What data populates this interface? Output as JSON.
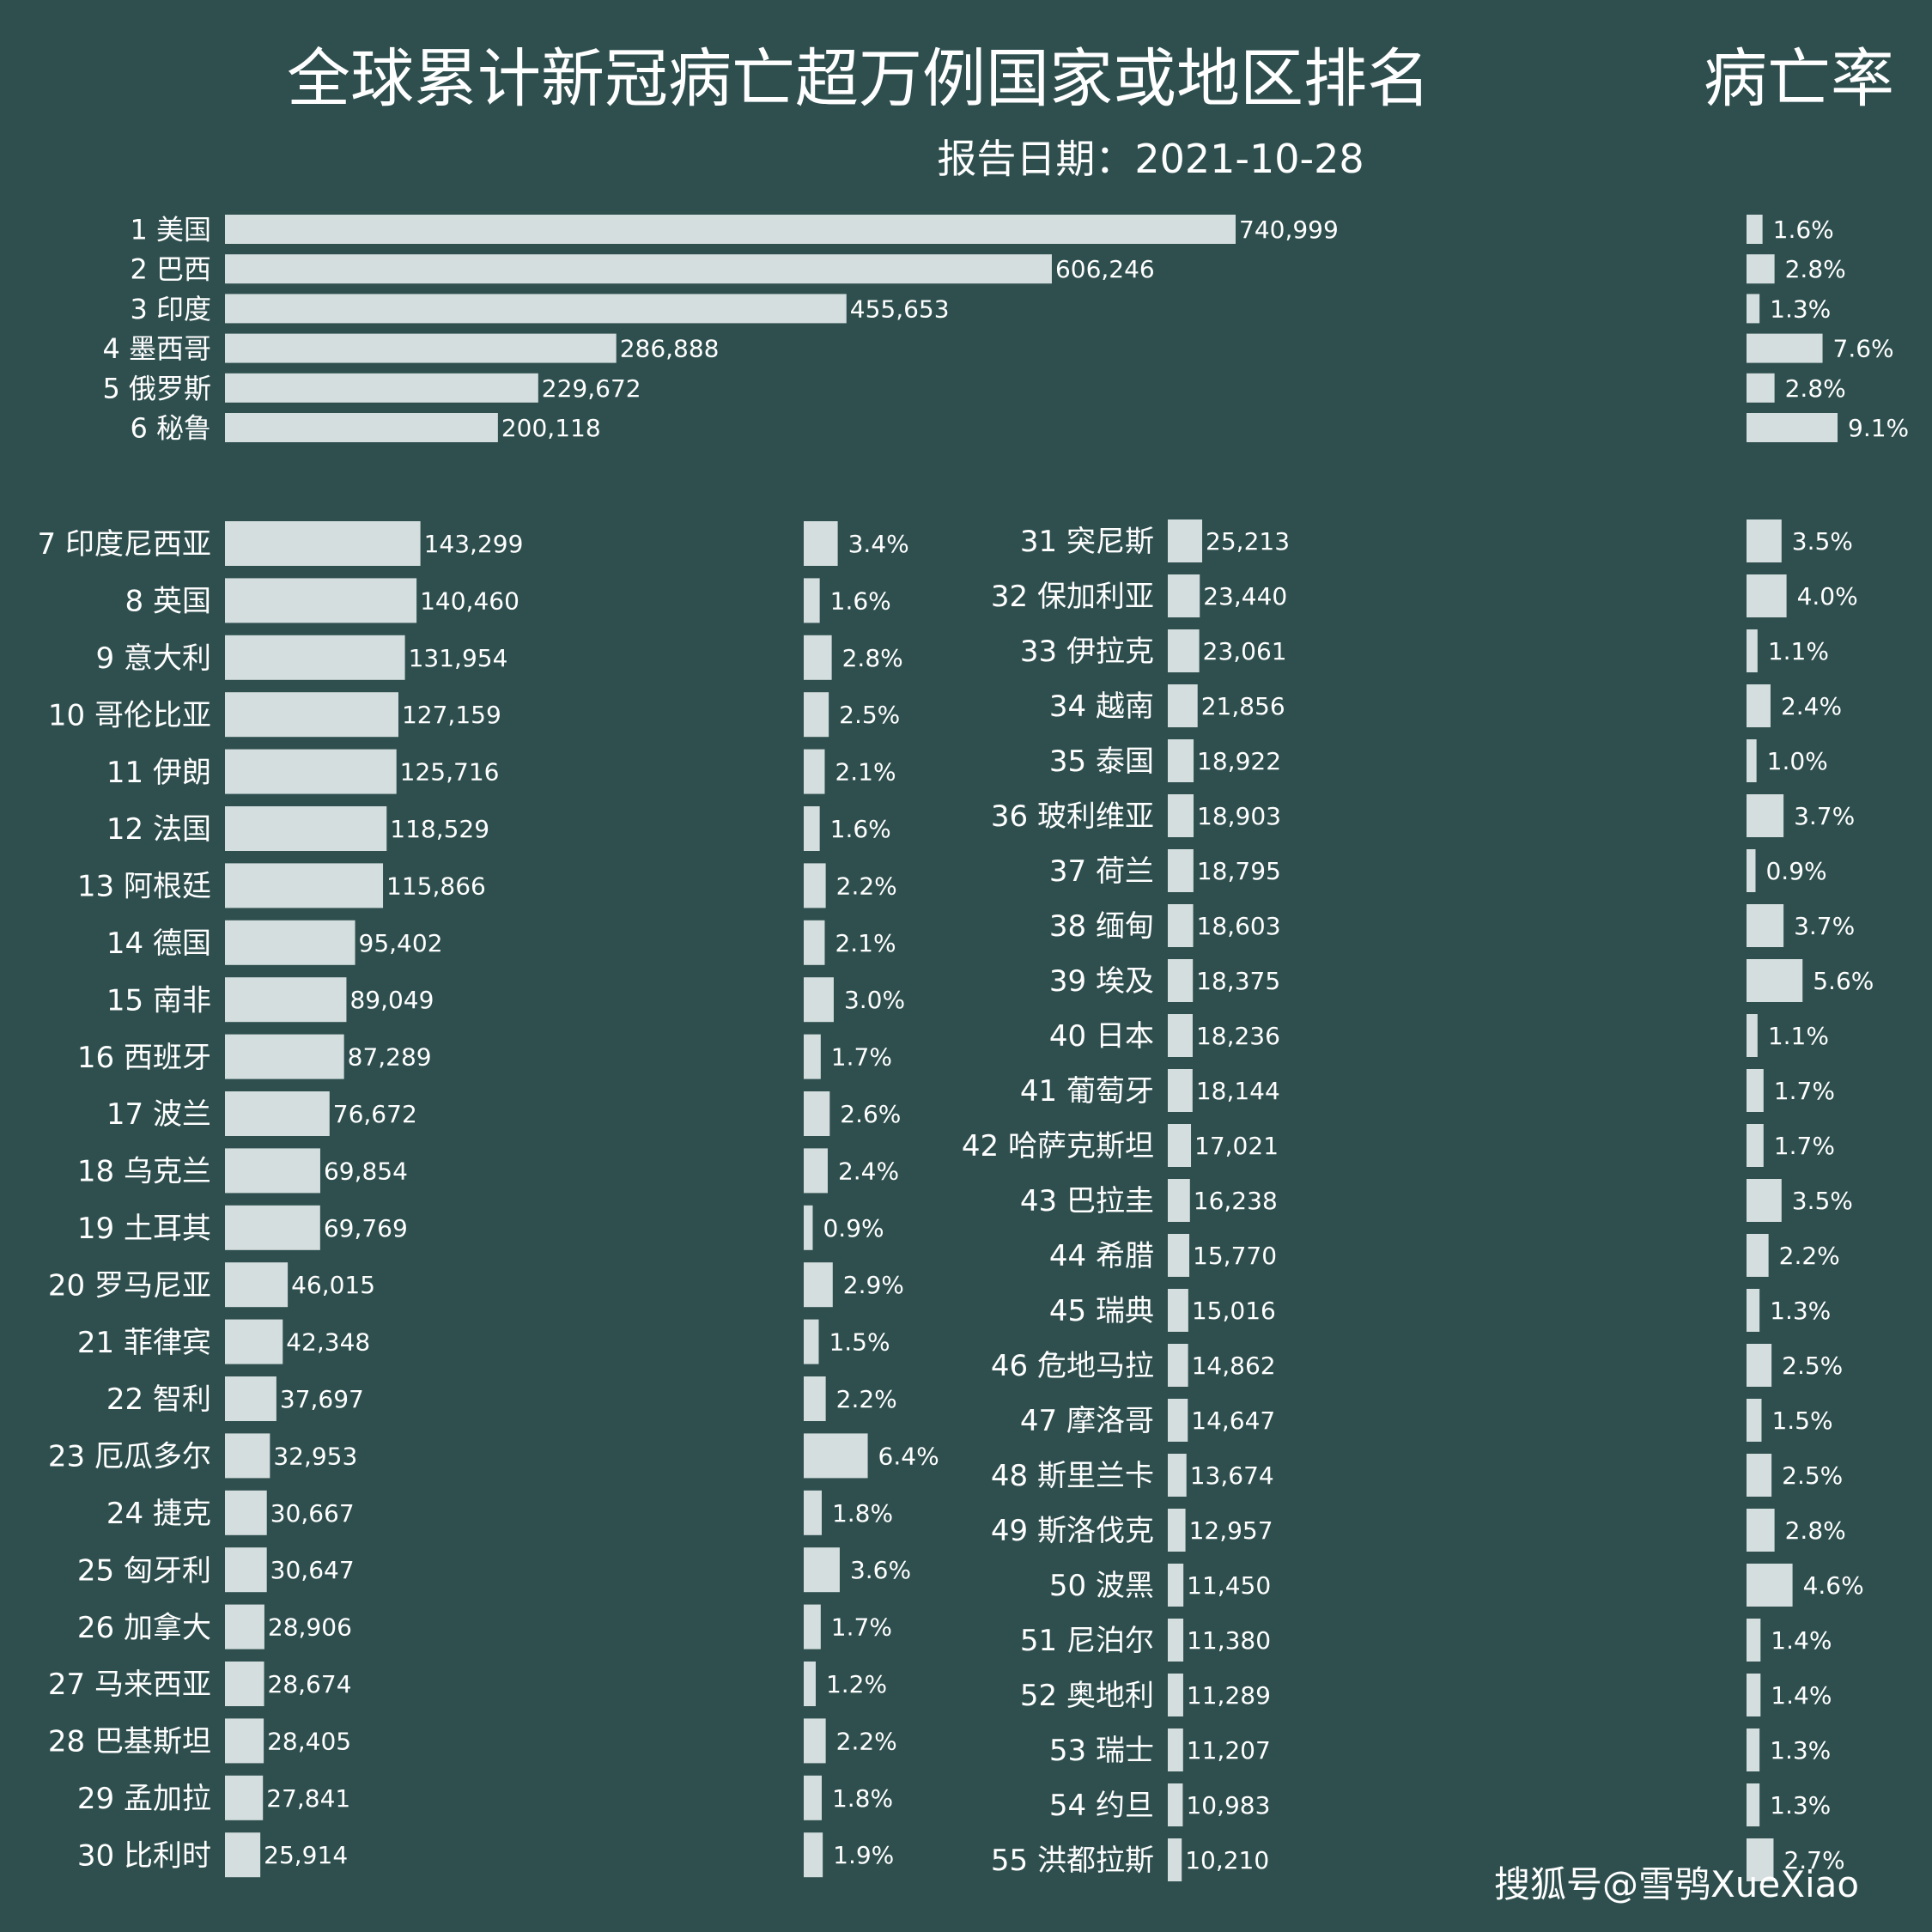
{
  "colors": {
    "background": "#2f4f4f",
    "bar": "#d5dede",
    "text": "#ffffff"
  },
  "chart_data": {
    "type": "bar",
    "orientation": "horizontal",
    "title": "全球累计新冠病亡超万例国家或地区排名",
    "rate_title": "病亡率",
    "subtitle": "报告日期：2021-10-28",
    "rows": [
      {
        "rank": "1",
        "name": "美国",
        "deaths": 740999,
        "deaths_label": "740,999",
        "rate": 1.6,
        "rate_label": "1.6%"
      },
      {
        "rank": "2",
        "name": "巴西",
        "deaths": 606246,
        "deaths_label": "606,246",
        "rate": 2.8,
        "rate_label": "2.8%"
      },
      {
        "rank": "3",
        "name": "印度",
        "deaths": 455653,
        "deaths_label": "455,653",
        "rate": 1.3,
        "rate_label": "1.3%"
      },
      {
        "rank": "4",
        "name": "墨西哥",
        "deaths": 286888,
        "deaths_label": "286,888",
        "rate": 7.6,
        "rate_label": "7.6%"
      },
      {
        "rank": "5",
        "name": "俄罗斯",
        "deaths": 229672,
        "deaths_label": "229,672",
        "rate": 2.8,
        "rate_label": "2.8%"
      },
      {
        "rank": "6",
        "name": "秘鲁",
        "deaths": 200118,
        "deaths_label": "200,118",
        "rate": 9.1,
        "rate_label": "9.1%"
      },
      {
        "rank": "7",
        "name": "印度尼西亚",
        "deaths": 143299,
        "deaths_label": "143,299",
        "rate": 3.4,
        "rate_label": "3.4%"
      },
      {
        "rank": "8",
        "name": "英国",
        "deaths": 140460,
        "deaths_label": "140,460",
        "rate": 1.6,
        "rate_label": "1.6%"
      },
      {
        "rank": "9",
        "name": "意大利",
        "deaths": 131954,
        "deaths_label": "131,954",
        "rate": 2.8,
        "rate_label": "2.8%"
      },
      {
        "rank": "10",
        "name": "哥伦比亚",
        "deaths": 127159,
        "deaths_label": "127,159",
        "rate": 2.5,
        "rate_label": "2.5%"
      },
      {
        "rank": "11",
        "name": "伊朗",
        "deaths": 125716,
        "deaths_label": "125,716",
        "rate": 2.1,
        "rate_label": "2.1%"
      },
      {
        "rank": "12",
        "name": "法国",
        "deaths": 118529,
        "deaths_label": "118,529",
        "rate": 1.6,
        "rate_label": "1.6%"
      },
      {
        "rank": "13",
        "name": "阿根廷",
        "deaths": 115866,
        "deaths_label": "115,866",
        "rate": 2.2,
        "rate_label": "2.2%"
      },
      {
        "rank": "14",
        "name": "德国",
        "deaths": 95402,
        "deaths_label": "95,402",
        "rate": 2.1,
        "rate_label": "2.1%"
      },
      {
        "rank": "15",
        "name": "南非",
        "deaths": 89049,
        "deaths_label": "89,049",
        "rate": 3.0,
        "rate_label": "3.0%"
      },
      {
        "rank": "16",
        "name": "西班牙",
        "deaths": 87289,
        "deaths_label": "87,289",
        "rate": 1.7,
        "rate_label": "1.7%"
      },
      {
        "rank": "17",
        "name": "波兰",
        "deaths": 76672,
        "deaths_label": "76,672",
        "rate": 2.6,
        "rate_label": "2.6%"
      },
      {
        "rank": "18",
        "name": "乌克兰",
        "deaths": 69854,
        "deaths_label": "69,854",
        "rate": 2.4,
        "rate_label": "2.4%"
      },
      {
        "rank": "19",
        "name": "土耳其",
        "deaths": 69769,
        "deaths_label": "69,769",
        "rate": 0.9,
        "rate_label": "0.9%"
      },
      {
        "rank": "20",
        "name": "罗马尼亚",
        "deaths": 46015,
        "deaths_label": "46,015",
        "rate": 2.9,
        "rate_label": "2.9%"
      },
      {
        "rank": "21",
        "name": "菲律宾",
        "deaths": 42348,
        "deaths_label": "42,348",
        "rate": 1.5,
        "rate_label": "1.5%"
      },
      {
        "rank": "22",
        "name": "智利",
        "deaths": 37697,
        "deaths_label": "37,697",
        "rate": 2.2,
        "rate_label": "2.2%"
      },
      {
        "rank": "23",
        "name": "厄瓜多尔",
        "deaths": 32953,
        "deaths_label": "32,953",
        "rate": 6.4,
        "rate_label": "6.4%"
      },
      {
        "rank": "24",
        "name": "捷克",
        "deaths": 30667,
        "deaths_label": "30,667",
        "rate": 1.8,
        "rate_label": "1.8%"
      },
      {
        "rank": "25",
        "name": "匈牙利",
        "deaths": 30647,
        "deaths_label": "30,647",
        "rate": 3.6,
        "rate_label": "3.6%"
      },
      {
        "rank": "26",
        "name": "加拿大",
        "deaths": 28906,
        "deaths_label": "28,906",
        "rate": 1.7,
        "rate_label": "1.7%"
      },
      {
        "rank": "27",
        "name": "马来西亚",
        "deaths": 28674,
        "deaths_label": "28,674",
        "rate": 1.2,
        "rate_label": "1.2%"
      },
      {
        "rank": "28",
        "name": "巴基斯坦",
        "deaths": 28405,
        "deaths_label": "28,405",
        "rate": 2.2,
        "rate_label": "2.2%"
      },
      {
        "rank": "29",
        "name": "孟加拉",
        "deaths": 27841,
        "deaths_label": "27,841",
        "rate": 1.8,
        "rate_label": "1.8%"
      },
      {
        "rank": "30",
        "name": "比利时",
        "deaths": 25914,
        "deaths_label": "25,914",
        "rate": 1.9,
        "rate_label": "1.9%"
      },
      {
        "rank": "31",
        "name": "突尼斯",
        "deaths": 25213,
        "deaths_label": "25,213",
        "rate": 3.5,
        "rate_label": "3.5%"
      },
      {
        "rank": "32",
        "name": "保加利亚",
        "deaths": 23440,
        "deaths_label": "23,440",
        "rate": 4.0,
        "rate_label": "4.0%"
      },
      {
        "rank": "33",
        "name": "伊拉克",
        "deaths": 23061,
        "deaths_label": "23,061",
        "rate": 1.1,
        "rate_label": "1.1%"
      },
      {
        "rank": "34",
        "name": "越南",
        "deaths": 21856,
        "deaths_label": "21,856",
        "rate": 2.4,
        "rate_label": "2.4%"
      },
      {
        "rank": "35",
        "name": "泰国",
        "deaths": 18922,
        "deaths_label": "18,922",
        "rate": 1.0,
        "rate_label": "1.0%"
      },
      {
        "rank": "36",
        "name": "玻利维亚",
        "deaths": 18903,
        "deaths_label": "18,903",
        "rate": 3.7,
        "rate_label": "3.7%"
      },
      {
        "rank": "37",
        "name": "荷兰",
        "deaths": 18795,
        "deaths_label": "18,795",
        "rate": 0.9,
        "rate_label": "0.9%"
      },
      {
        "rank": "38",
        "name": "缅甸",
        "deaths": 18603,
        "deaths_label": "18,603",
        "rate": 3.7,
        "rate_label": "3.7%"
      },
      {
        "rank": "39",
        "name": "埃及",
        "deaths": 18375,
        "deaths_label": "18,375",
        "rate": 5.6,
        "rate_label": "5.6%"
      },
      {
        "rank": "40",
        "name": "日本",
        "deaths": 18236,
        "deaths_label": "18,236",
        "rate": 1.1,
        "rate_label": "1.1%"
      },
      {
        "rank": "41",
        "name": "葡萄牙",
        "deaths": 18144,
        "deaths_label": "18,144",
        "rate": 1.7,
        "rate_label": "1.7%"
      },
      {
        "rank": "42",
        "name": "哈萨克斯坦",
        "deaths": 17021,
        "deaths_label": "17,021",
        "rate": 1.7,
        "rate_label": "1.7%"
      },
      {
        "rank": "43",
        "name": "巴拉圭",
        "deaths": 16238,
        "deaths_label": "16,238",
        "rate": 3.5,
        "rate_label": "3.5%"
      },
      {
        "rank": "44",
        "name": "希腊",
        "deaths": 15770,
        "deaths_label": "15,770",
        "rate": 2.2,
        "rate_label": "2.2%"
      },
      {
        "rank": "45",
        "name": "瑞典",
        "deaths": 15016,
        "deaths_label": "15,016",
        "rate": 1.3,
        "rate_label": "1.3%"
      },
      {
        "rank": "46",
        "name": "危地马拉",
        "deaths": 14862,
        "deaths_label": "14,862",
        "rate": 2.5,
        "rate_label": "2.5%"
      },
      {
        "rank": "47",
        "name": "摩洛哥",
        "deaths": 14647,
        "deaths_label": "14,647",
        "rate": 1.5,
        "rate_label": "1.5%"
      },
      {
        "rank": "48",
        "name": "斯里兰卡",
        "deaths": 13674,
        "deaths_label": "13,674",
        "rate": 2.5,
        "rate_label": "2.5%"
      },
      {
        "rank": "49",
        "name": "斯洛伐克",
        "deaths": 12957,
        "deaths_label": "12,957",
        "rate": 2.8,
        "rate_label": "2.8%"
      },
      {
        "rank": "50",
        "name": "波黑",
        "deaths": 11450,
        "deaths_label": "11,450",
        "rate": 4.6,
        "rate_label": "4.6%"
      },
      {
        "rank": "51",
        "name": "尼泊尔",
        "deaths": 11380,
        "deaths_label": "11,380",
        "rate": 1.4,
        "rate_label": "1.4%"
      },
      {
        "rank": "52",
        "name": "奥地利",
        "deaths": 11289,
        "deaths_label": "11,289",
        "rate": 1.4,
        "rate_label": "1.4%"
      },
      {
        "rank": "53",
        "name": "瑞士",
        "deaths": 11207,
        "deaths_label": "11,207",
        "rate": 1.3,
        "rate_label": "1.3%"
      },
      {
        "rank": "54",
        "name": "约旦",
        "deaths": 10983,
        "deaths_label": "10,983",
        "rate": 1.3,
        "rate_label": "1.3%"
      },
      {
        "rank": "55",
        "name": "洪都拉斯",
        "deaths": 10210,
        "deaths_label": "10,210",
        "rate": 2.7,
        "rate_label": "2.7%"
      }
    ]
  },
  "watermark": "搜狐号@雪鸮XueXiao"
}
